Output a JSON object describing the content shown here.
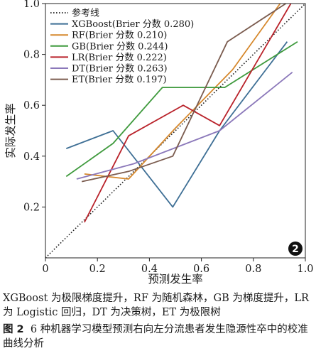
{
  "chart_data": {
    "type": "line",
    "xlabel": "预测发生率",
    "ylabel": "实际发生率",
    "xlim": [
      0,
      1
    ],
    "ylim": [
      0,
      1
    ],
    "xticks": [
      "0",
      "0.2",
      "0.4",
      "0.6",
      "0.8",
      "1.0"
    ],
    "yticks": [
      "0.2",
      "0.4",
      "0.6",
      "0.8",
      "1.0"
    ],
    "grid": false,
    "legend_position": "top-left",
    "badge": "2",
    "reference": {
      "name": "参考线",
      "color": "#222222",
      "x": [
        0,
        1
      ],
      "y": [
        0,
        1
      ]
    },
    "series": [
      {
        "name": "XGBoost(Brier 分数 0.280)",
        "color": "#3e6f95",
        "x": [
          0.08,
          0.26,
          0.49,
          0.67,
          0.93
        ],
        "y": [
          0.43,
          0.5,
          0.2,
          0.5,
          0.85
        ]
      },
      {
        "name": "RF(Brier 分数 0.210)",
        "color": "#d6882c",
        "x": [
          0.15,
          0.32,
          0.5,
          0.72,
          0.91
        ],
        "y": [
          0.33,
          0.31,
          0.51,
          0.74,
          1.01
        ]
      },
      {
        "name": "GB(Brier 分数 0.244)",
        "color": "#3f9a3d",
        "x": [
          0.08,
          0.26,
          0.45,
          0.69,
          0.97
        ],
        "y": [
          0.32,
          0.45,
          0.67,
          0.67,
          0.85
        ]
      },
      {
        "name": "LR(Brier 分数 0.222)",
        "color": "#b9222a",
        "x": [
          0.15,
          0.32,
          0.53,
          0.67,
          0.95
        ],
        "y": [
          0.14,
          0.48,
          0.6,
          0.52,
          1.01
        ]
      },
      {
        "name": "DT(Brier 分数 0.263)",
        "color": "#8b78ba",
        "x": [
          0.12,
          0.34,
          0.67,
          0.95
        ],
        "y": [
          0.31,
          0.37,
          0.5,
          0.73
        ]
      },
      {
        "name": "ET(Brier 分数 0.197)",
        "color": "#7b5c4f",
        "x": [
          0.14,
          0.32,
          0.49,
          0.7,
          0.94
        ],
        "y": [
          0.3,
          0.34,
          0.4,
          0.85,
          1.01
        ]
      }
    ]
  },
  "caption": {
    "note": "XGBoost 为极限梯度提升，RF 为随机森林，GB 为梯度提升，LR 为 Logistic 回归，DT 为决策树，ET 为极限树",
    "figure_number": "图 2",
    "figure_title": "6 种机器学习模型预测右向左分流患者发生隐源性卒中的校准曲线分析"
  }
}
